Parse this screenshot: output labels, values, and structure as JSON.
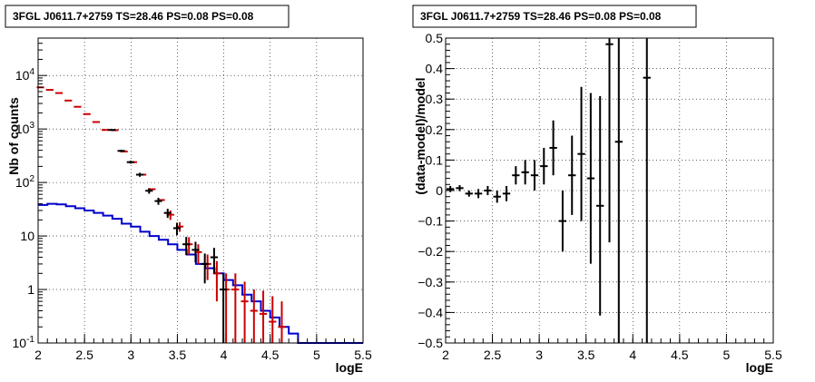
{
  "chart_data": [
    {
      "type": "histogram-errorbar",
      "title": "3FGL J0611.7+2759 TS=28.46 PS=0.08 PS=0.08",
      "xlabel": "logE",
      "ylabel": "Nb of counts",
      "xlim": [
        2,
        5.5
      ],
      "ylim": [
        0.1,
        50000
      ],
      "yscale": "log",
      "grid": true,
      "x_ticks": [
        "2",
        "2.5",
        "3",
        "3.5",
        "4",
        "4.5",
        "5",
        "5.5"
      ],
      "y_ticks": [
        "10^-1",
        "1",
        "10",
        "10^2",
        "10^3",
        "10^4"
      ],
      "colors": {
        "data": "#000000",
        "model": "#cc0000",
        "background": "#0000cc"
      },
      "series": [
        {
          "role": "data",
          "x": [
            2.825,
            2.925,
            3.025,
            3.125,
            3.225,
            3.325,
            3.425,
            3.525,
            3.625,
            3.725,
            3.825,
            3.925,
            4.025
          ],
          "y": [
            960,
            390,
            240,
            140,
            70,
            45,
            27,
            14,
            7,
            5.5,
            3,
            4,
            1
          ],
          "yerr_low": [
            31,
            20,
            15,
            12,
            8.3,
            6.7,
            5.2,
            3.7,
            2.6,
            2.3,
            1.7,
            2,
            1
          ],
          "yerr_high": [
            31,
            20,
            15,
            12,
            8.3,
            6.7,
            5.2,
            3.7,
            2.6,
            2.3,
            1.7,
            2,
            1
          ]
        },
        {
          "role": "model",
          "x": [
            2.025,
            2.125,
            2.225,
            2.325,
            2.425,
            2.525,
            2.625,
            2.725,
            2.825,
            2.925,
            3.025,
            3.125,
            3.225,
            3.325,
            3.425,
            3.525,
            3.625,
            3.725,
            3.825,
            3.925,
            4.025,
            4.125,
            4.225,
            4.325,
            4.425,
            4.525,
            4.625
          ],
          "y": [
            6000,
            5400,
            4700,
            3400,
            2600,
            1900,
            1350,
            960,
            950,
            380,
            240,
            140,
            75,
            47,
            25,
            15,
            7,
            5,
            3,
            2,
            1,
            1,
            0.6,
            0.4,
            0.35,
            0.25,
            0.2
          ],
          "yerr": [
            0,
            0,
            0,
            0,
            0,
            0,
            0,
            0,
            0,
            0,
            0,
            0,
            0,
            0,
            5,
            3,
            2.5,
            2,
            1.5,
            1.4,
            1,
            1,
            0.8,
            0.6,
            0.6,
            0.5,
            0.4
          ]
        },
        {
          "role": "background",
          "step_x": [
            2.0,
            2.1,
            2.2,
            2.3,
            2.4,
            2.5,
            2.6,
            2.7,
            2.8,
            2.9,
            3.0,
            3.1,
            3.2,
            3.3,
            3.4,
            3.5,
            3.6,
            3.7,
            3.8,
            3.9,
            4.0,
            4.1,
            4.2,
            4.3,
            4.4,
            4.5,
            4.6,
            4.7,
            4.8,
            5.5
          ],
          "y": [
            38,
            40,
            39,
            36,
            33,
            30,
            27,
            24,
            21,
            17,
            15,
            12,
            10,
            8.5,
            7,
            5.5,
            4.5,
            3,
            2.5,
            2,
            1.5,
            1.2,
            0.8,
            0.6,
            0.4,
            0.3,
            0.2,
            0.15,
            0.1
          ]
        }
      ]
    },
    {
      "type": "errorbar",
      "title": "3FGL J0611.7+2759 TS=28.46 PS=0.08 PS=0.08",
      "xlabel": "logE",
      "ylabel": "(data-model)/model",
      "xlim": [
        2,
        5.5
      ],
      "ylim": [
        -0.5,
        0.5
      ],
      "grid": true,
      "x_ticks": [
        "2",
        "2.5",
        "3",
        "3.5",
        "4",
        "4.5",
        "5",
        "5.5"
      ],
      "y_ticks": [
        "−0.5",
        "−0.4",
        "−0.3",
        "−0.2",
        "−0.1",
        "0",
        "0.1",
        "0.2",
        "0.3",
        "0.4",
        "0.5"
      ],
      "color": "#000000",
      "points": [
        {
          "x": 2.05,
          "y": 0.005,
          "err": 0.01
        },
        {
          "x": 2.15,
          "y": 0.008,
          "err": 0.01
        },
        {
          "x": 2.25,
          "y": -0.01,
          "err": 0.01
        },
        {
          "x": 2.35,
          "y": -0.01,
          "err": 0.015
        },
        {
          "x": 2.45,
          "y": 0.0,
          "err": 0.015
        },
        {
          "x": 2.55,
          "y": -0.02,
          "err": 0.02
        },
        {
          "x": 2.65,
          "y": -0.01,
          "err": 0.025
        },
        {
          "x": 2.75,
          "y": 0.05,
          "err": 0.03
        },
        {
          "x": 2.85,
          "y": 0.06,
          "err": 0.04
        },
        {
          "x": 2.95,
          "y": 0.05,
          "err": 0.05
        },
        {
          "x": 3.05,
          "y": 0.08,
          "err": 0.06
        },
        {
          "x": 3.15,
          "y": 0.14,
          "err": 0.09
        },
        {
          "x": 3.25,
          "y": -0.1,
          "err": 0.1
        },
        {
          "x": 3.35,
          "y": 0.05,
          "err": 0.13
        },
        {
          "x": 3.45,
          "y": 0.12,
          "err": 0.22
        },
        {
          "x": 3.55,
          "y": 0.04,
          "err": 0.28
        },
        {
          "x": 3.65,
          "y": -0.05,
          "err": 0.36
        },
        {
          "x": 3.75,
          "y": 0.48,
          "err": 0.65
        },
        {
          "x": 3.85,
          "y": 0.16,
          "err": 1.0
        },
        {
          "x": 4.15,
          "y": 0.37,
          "err": 1.0
        }
      ]
    }
  ]
}
